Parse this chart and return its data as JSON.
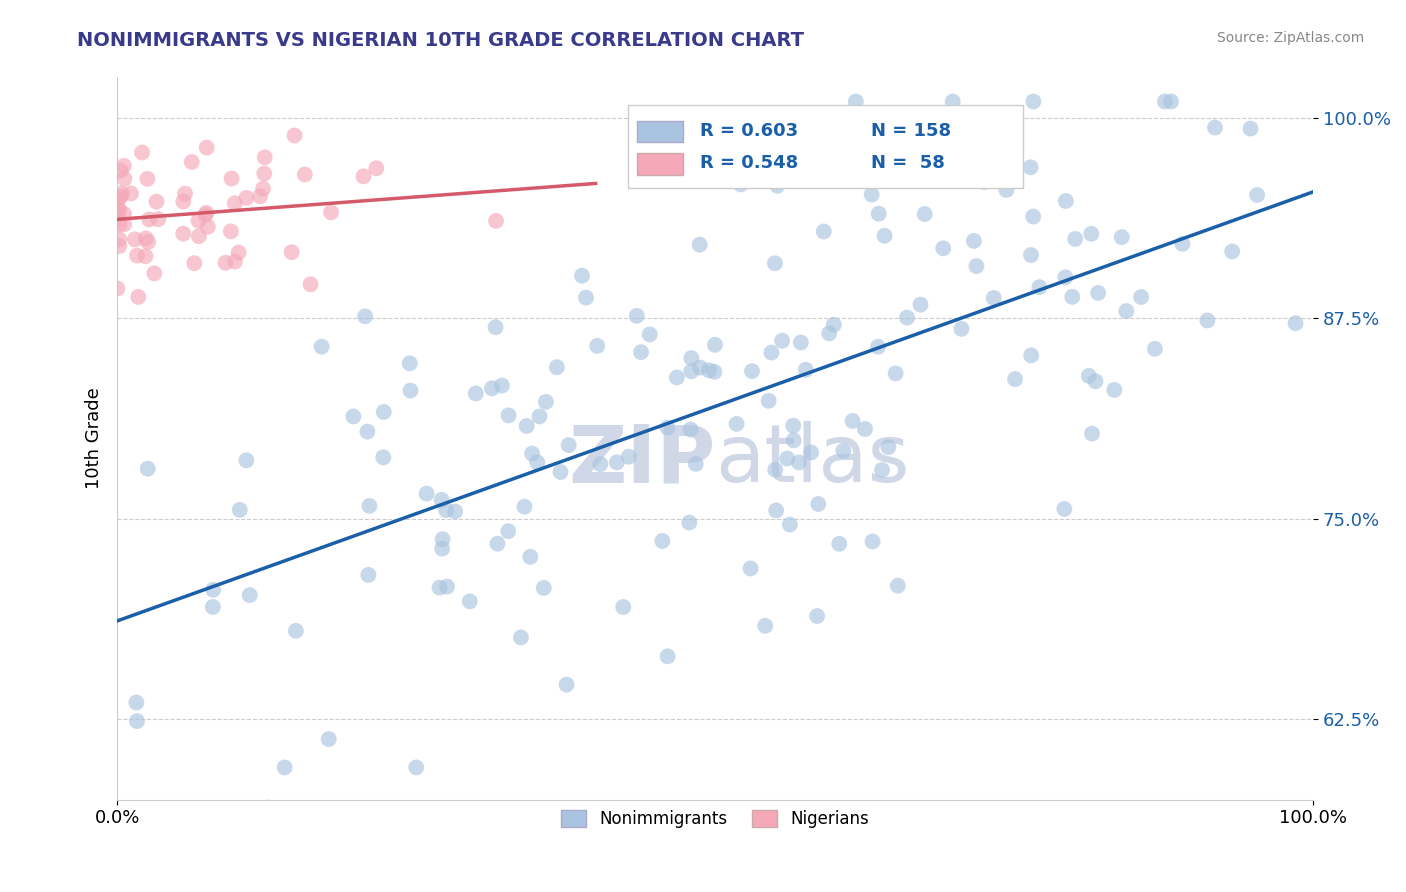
{
  "title": "NONIMMIGRANTS VS NIGERIAN 10TH GRADE CORRELATION CHART",
  "ylabel": "10th Grade",
  "source_text": "Source: ZipAtlas.com",
  "blue_R": 0.603,
  "blue_N": 158,
  "pink_R": 0.548,
  "pink_N": 58,
  "blue_color": "#a8c4e0",
  "blue_line_color": "#1a5fa8",
  "pink_color": "#f4a8b8",
  "pink_line_color": "#d45a6a",
  "title_color": "#3a3a8c",
  "legend_color": "#1a5fa8",
  "watermark_color": "#d0d8e8",
  "background_color": "#ffffff",
  "grid_color": "#cccccc",
  "xlim": [
    0.0,
    1.0
  ],
  "ylim": [
    0.575,
    1.025
  ],
  "yticks": [
    0.625,
    0.75,
    0.875,
    1.0
  ],
  "ytick_labels": [
    "62.5%",
    "75.0%",
    "87.5%",
    "100.0%"
  ],
  "xtick_labels": [
    "0.0%",
    "100.0%"
  ],
  "xticks": [
    0.0,
    1.0
  ],
  "blue_line_x": [
    0.0,
    1.0
  ],
  "blue_line_y": [
    0.685,
    0.97
  ],
  "pink_line_x": [
    0.0,
    0.4
  ],
  "pink_line_y": [
    0.935,
    0.975
  ]
}
